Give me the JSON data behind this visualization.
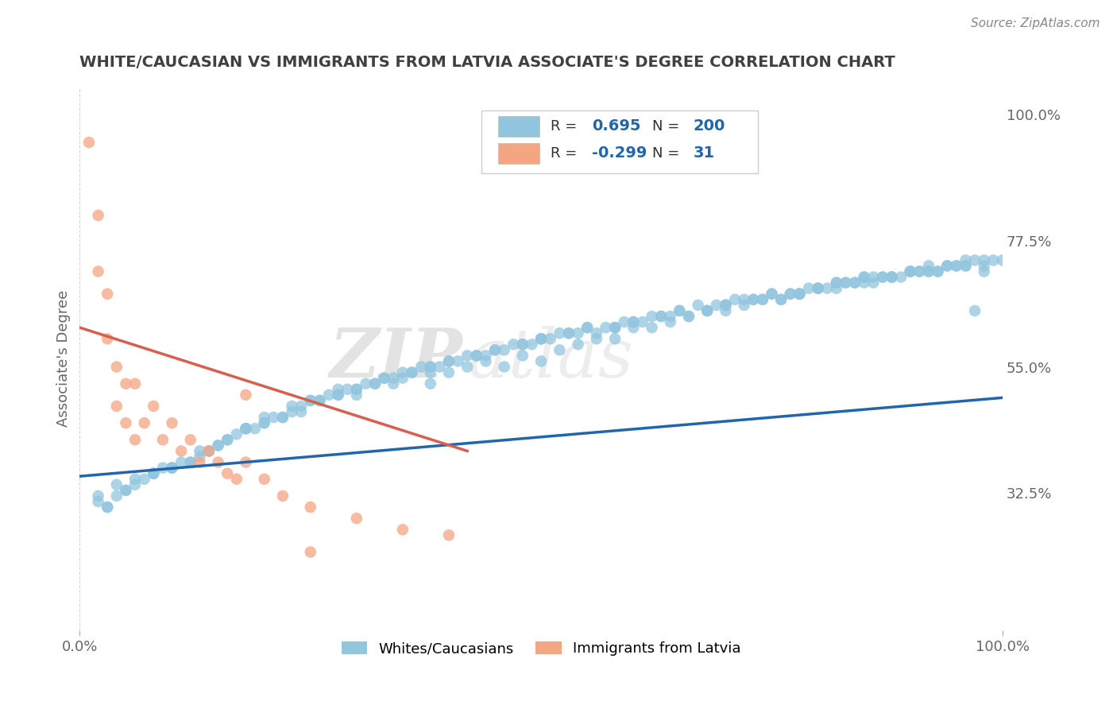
{
  "title": "WHITE/CAUCASIAN VS IMMIGRANTS FROM LATVIA ASSOCIATE'S DEGREE CORRELATION CHART",
  "source_text": "Source: ZipAtlas.com",
  "ylabel": "Associate's Degree",
  "right_ytick_labels": [
    "32.5%",
    "55.0%",
    "77.5%",
    "100.0%"
  ],
  "right_ytick_values": [
    0.325,
    0.55,
    0.775,
    1.0
  ],
  "xlim": [
    0.0,
    1.0
  ],
  "ylim": [
    0.08,
    1.05
  ],
  "blue_R": 0.695,
  "blue_N": 200,
  "pink_R": -0.299,
  "pink_N": 31,
  "blue_color": "#92c5de",
  "pink_color": "#f4a582",
  "blue_line_color": "#2166ac",
  "pink_line_color": "#d6604d",
  "watermark_zip": "ZIP",
  "watermark_atlas": "atlas",
  "legend_label_blue": "Whites/Caucasians",
  "legend_label_pink": "Immigrants from Latvia",
  "background_color": "#ffffff",
  "grid_color": "#cccccc",
  "title_color": "#404040",
  "blue_scatter_x": [
    0.02,
    0.04,
    0.06,
    0.08,
    0.1,
    0.12,
    0.14,
    0.16,
    0.18,
    0.2,
    0.22,
    0.24,
    0.26,
    0.28,
    0.3,
    0.32,
    0.34,
    0.36,
    0.38,
    0.4,
    0.42,
    0.44,
    0.46,
    0.48,
    0.5,
    0.52,
    0.54,
    0.56,
    0.58,
    0.6,
    0.62,
    0.64,
    0.66,
    0.68,
    0.7,
    0.72,
    0.74,
    0.76,
    0.78,
    0.8,
    0.82,
    0.84,
    0.86,
    0.88,
    0.9,
    0.92,
    0.94,
    0.96,
    0.98,
    1.0,
    0.05,
    0.09,
    0.13,
    0.17,
    0.21,
    0.25,
    0.29,
    0.33,
    0.37,
    0.41,
    0.45,
    0.49,
    0.53,
    0.57,
    0.61,
    0.65,
    0.69,
    0.73,
    0.77,
    0.81,
    0.85,
    0.89,
    0.93,
    0.97,
    0.07,
    0.11,
    0.15,
    0.19,
    0.23,
    0.27,
    0.31,
    0.35,
    0.39,
    0.43,
    0.47,
    0.51,
    0.55,
    0.59,
    0.63,
    0.67,
    0.71,
    0.75,
    0.79,
    0.83,
    0.87,
    0.91,
    0.95,
    0.99,
    0.03,
    0.1,
    0.2,
    0.3,
    0.4,
    0.5,
    0.6,
    0.7,
    0.8,
    0.9,
    0.08,
    0.18,
    0.28,
    0.38,
    0.48,
    0.58,
    0.68,
    0.78,
    0.88,
    0.98,
    0.06,
    0.16,
    0.26,
    0.36,
    0.46,
    0.56,
    0.66,
    0.76,
    0.86,
    0.96,
    0.14,
    0.24,
    0.34,
    0.44,
    0.54,
    0.64,
    0.74,
    0.84,
    0.94,
    0.04,
    0.12,
    0.22,
    0.32,
    0.42,
    0.52,
    0.62,
    0.72,
    0.82,
    0.92,
    0.02,
    0.18,
    0.38,
    0.58,
    0.78,
    0.98,
    0.1,
    0.3,
    0.5,
    0.7,
    0.9,
    0.15,
    0.35,
    0.55,
    0.75,
    0.95,
    0.25,
    0.45,
    0.65,
    0.85,
    0.05,
    0.4,
    0.6,
    0.8,
    0.2,
    0.7,
    0.5,
    0.85,
    0.92,
    0.97,
    0.88,
    0.93,
    0.96,
    0.78,
    0.83,
    0.73,
    0.68,
    0.63,
    0.58,
    0.53,
    0.48,
    0.43,
    0.38,
    0.33,
    0.28,
    0.23,
    0.13,
    0.08,
    0.03,
    0.77,
    0.82,
    0.87,
    0.91
  ],
  "blue_scatter_y": [
    0.32,
    0.34,
    0.35,
    0.36,
    0.37,
    0.38,
    0.4,
    0.42,
    0.44,
    0.45,
    0.46,
    0.48,
    0.49,
    0.5,
    0.5,
    0.52,
    0.53,
    0.54,
    0.52,
    0.54,
    0.55,
    0.56,
    0.55,
    0.57,
    0.56,
    0.58,
    0.59,
    0.6,
    0.6,
    0.62,
    0.62,
    0.63,
    0.64,
    0.65,
    0.65,
    0.66,
    0.67,
    0.67,
    0.68,
    0.69,
    0.7,
    0.7,
    0.71,
    0.71,
    0.72,
    0.72,
    0.73,
    0.73,
    0.72,
    0.74,
    0.33,
    0.37,
    0.39,
    0.43,
    0.46,
    0.49,
    0.51,
    0.53,
    0.55,
    0.56,
    0.58,
    0.59,
    0.61,
    0.62,
    0.63,
    0.65,
    0.66,
    0.67,
    0.68,
    0.69,
    0.7,
    0.71,
    0.72,
    0.74,
    0.35,
    0.38,
    0.41,
    0.44,
    0.47,
    0.5,
    0.52,
    0.54,
    0.55,
    0.57,
    0.59,
    0.6,
    0.62,
    0.63,
    0.64,
    0.66,
    0.67,
    0.68,
    0.69,
    0.7,
    0.71,
    0.72,
    0.73,
    0.74,
    0.3,
    0.37,
    0.45,
    0.51,
    0.56,
    0.6,
    0.63,
    0.66,
    0.69,
    0.72,
    0.36,
    0.44,
    0.5,
    0.55,
    0.59,
    0.62,
    0.65,
    0.68,
    0.71,
    0.73,
    0.34,
    0.42,
    0.49,
    0.54,
    0.58,
    0.61,
    0.64,
    0.67,
    0.7,
    0.73,
    0.4,
    0.47,
    0.52,
    0.57,
    0.61,
    0.64,
    0.67,
    0.7,
    0.73,
    0.32,
    0.38,
    0.46,
    0.52,
    0.57,
    0.61,
    0.64,
    0.67,
    0.7,
    0.73,
    0.31,
    0.44,
    0.54,
    0.62,
    0.68,
    0.74,
    0.37,
    0.51,
    0.6,
    0.66,
    0.72,
    0.41,
    0.53,
    0.62,
    0.68,
    0.73,
    0.49,
    0.58,
    0.65,
    0.71,
    0.33,
    0.56,
    0.63,
    0.69,
    0.46,
    0.66,
    0.6,
    0.71,
    0.72,
    0.65,
    0.71,
    0.72,
    0.74,
    0.68,
    0.7,
    0.67,
    0.65,
    0.64,
    0.62,
    0.61,
    0.59,
    0.57,
    0.55,
    0.53,
    0.51,
    0.48,
    0.4,
    0.36,
    0.3,
    0.68,
    0.69,
    0.71,
    0.72
  ],
  "pink_scatter_x": [
    0.01,
    0.02,
    0.02,
    0.03,
    0.03,
    0.04,
    0.04,
    0.05,
    0.05,
    0.06,
    0.06,
    0.07,
    0.08,
    0.09,
    0.1,
    0.11,
    0.12,
    0.13,
    0.14,
    0.15,
    0.16,
    0.17,
    0.18,
    0.2,
    0.22,
    0.25,
    0.3,
    0.35,
    0.4,
    0.18,
    0.25
  ],
  "pink_scatter_y": [
    0.95,
    0.82,
    0.72,
    0.68,
    0.6,
    0.55,
    0.48,
    0.52,
    0.45,
    0.52,
    0.42,
    0.45,
    0.48,
    0.42,
    0.45,
    0.4,
    0.42,
    0.38,
    0.4,
    0.38,
    0.36,
    0.35,
    0.38,
    0.35,
    0.32,
    0.3,
    0.28,
    0.26,
    0.25,
    0.5,
    0.22
  ],
  "blue_trendline_x": [
    0.0,
    1.0
  ],
  "blue_trendline_y": [
    0.355,
    0.495
  ],
  "pink_trendline_x": [
    0.0,
    0.42
  ],
  "pink_trendline_y": [
    0.62,
    0.4
  ]
}
